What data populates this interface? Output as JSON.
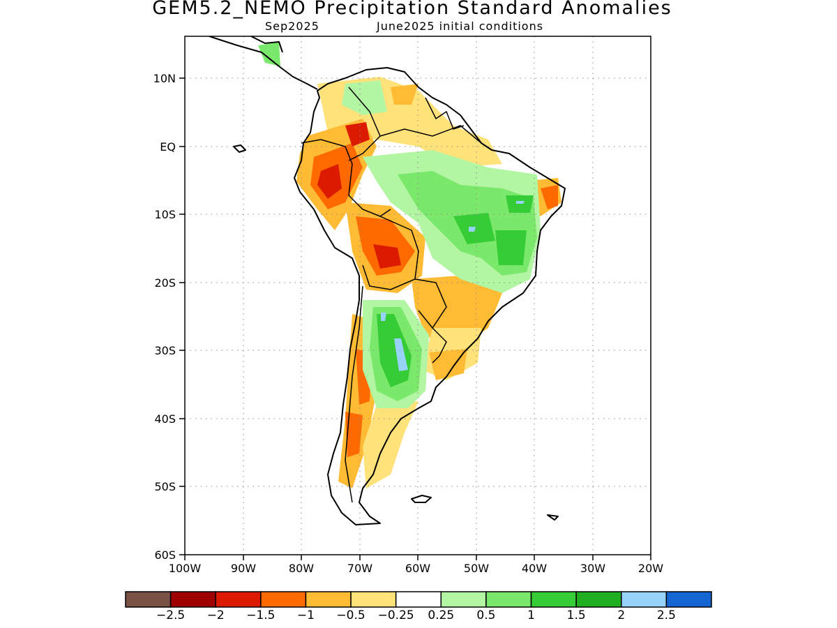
{
  "header": {
    "title": "GEM5.2_NEMO Precipitation Standard Anomalies",
    "valid_month": "Sep2025",
    "init_conditions": "June2025 initial conditions"
  },
  "axes": {
    "lat_labels": [
      "10N",
      "EQ",
      "10S",
      "20S",
      "30S",
      "40S",
      "50S",
      "60S"
    ],
    "lon_labels": [
      "100W",
      "90W",
      "80W",
      "70W",
      "60W",
      "50W",
      "40W",
      "30W",
      "20W"
    ],
    "lat_range": [
      -60,
      15
    ],
    "lon_range": [
      -100,
      -20
    ],
    "grid": true
  },
  "colorbar": {
    "colors": [
      "#7a5145",
      "#9e0000",
      "#dc1a00",
      "#ff6a00",
      "#ffbb33",
      "#ffe27a",
      "#ffffff",
      "#b2f5a3",
      "#7ae86a",
      "#36cc36",
      "#1fae1f",
      "#96d2fa",
      "#1464d2"
    ],
    "labels": [
      "-2.5",
      "-2",
      "-1.5",
      "-1",
      "-0.5",
      "-0.25",
      "0.25",
      "0.5",
      "1",
      "1.5",
      "2",
      "2.5"
    ]
  }
}
